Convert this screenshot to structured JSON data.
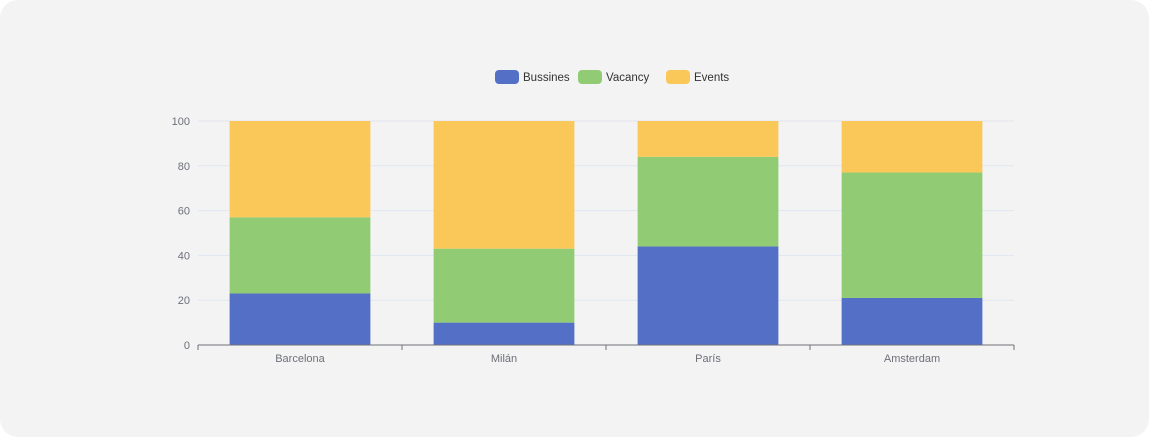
{
  "chart_data": {
    "type": "bar",
    "stacked": true,
    "categories": [
      "Barcelona",
      "Milán",
      "París",
      "Amsterdam"
    ],
    "series": [
      {
        "name": "Bussines",
        "color": "#5470c6",
        "values": [
          23,
          10,
          44,
          21
        ]
      },
      {
        "name": "Vacancy",
        "color": "#91cc75",
        "values": [
          34,
          33,
          40,
          56
        ]
      },
      {
        "name": "Events",
        "color": "#fac858",
        "values": [
          43,
          57,
          16,
          23
        ]
      }
    ],
    "ylim": [
      0,
      100
    ],
    "yticks": [
      0,
      20,
      40,
      60,
      80,
      100
    ],
    "grid": true,
    "legend_position": "top-center",
    "title": "",
    "xlabel": "",
    "ylabel": ""
  }
}
